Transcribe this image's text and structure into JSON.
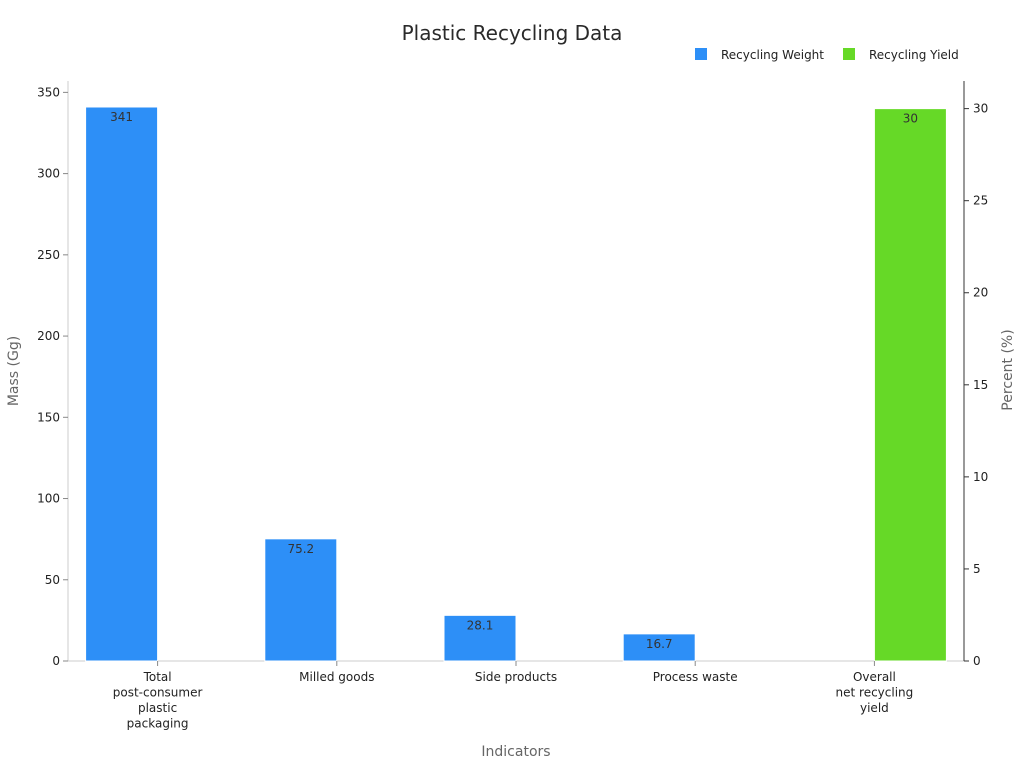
{
  "chart_data": {
    "type": "bar",
    "title": "Plastic Recycling Data",
    "xlabel": "Indicators",
    "ylabel": "Mass (Gg)",
    "y2label": "Percent (%)",
    "categories": [
      [
        "Total",
        "post-consumer",
        "plastic",
        "packaging"
      ],
      [
        "Milled goods"
      ],
      [
        "Side products"
      ],
      [
        "Process waste"
      ],
      [
        "Overall",
        "net recycling",
        "yield"
      ]
    ],
    "series": [
      {
        "name": "Recycling Weight",
        "axis": "left",
        "color": "#2d8ff7",
        "values": [
          341,
          75.2,
          28.1,
          16.7,
          null
        ],
        "labels": [
          "341",
          "75.2",
          "28.1",
          "16.7",
          ""
        ]
      },
      {
        "name": "Recycling Yield",
        "axis": "right",
        "color": "#66d927",
        "values": [
          null,
          null,
          null,
          null,
          30
        ],
        "labels": [
          "",
          "",
          "",
          "",
          "30"
        ]
      }
    ],
    "ylim": [
      0,
      357
    ],
    "yticks": [
      0,
      50,
      100,
      150,
      200,
      250,
      300,
      350
    ],
    "y2lim": [
      0,
      31.5
    ],
    "y2ticks": [
      0,
      5,
      10,
      15,
      20,
      25,
      30
    ],
    "legend_position": "top-right",
    "grid": false
  }
}
